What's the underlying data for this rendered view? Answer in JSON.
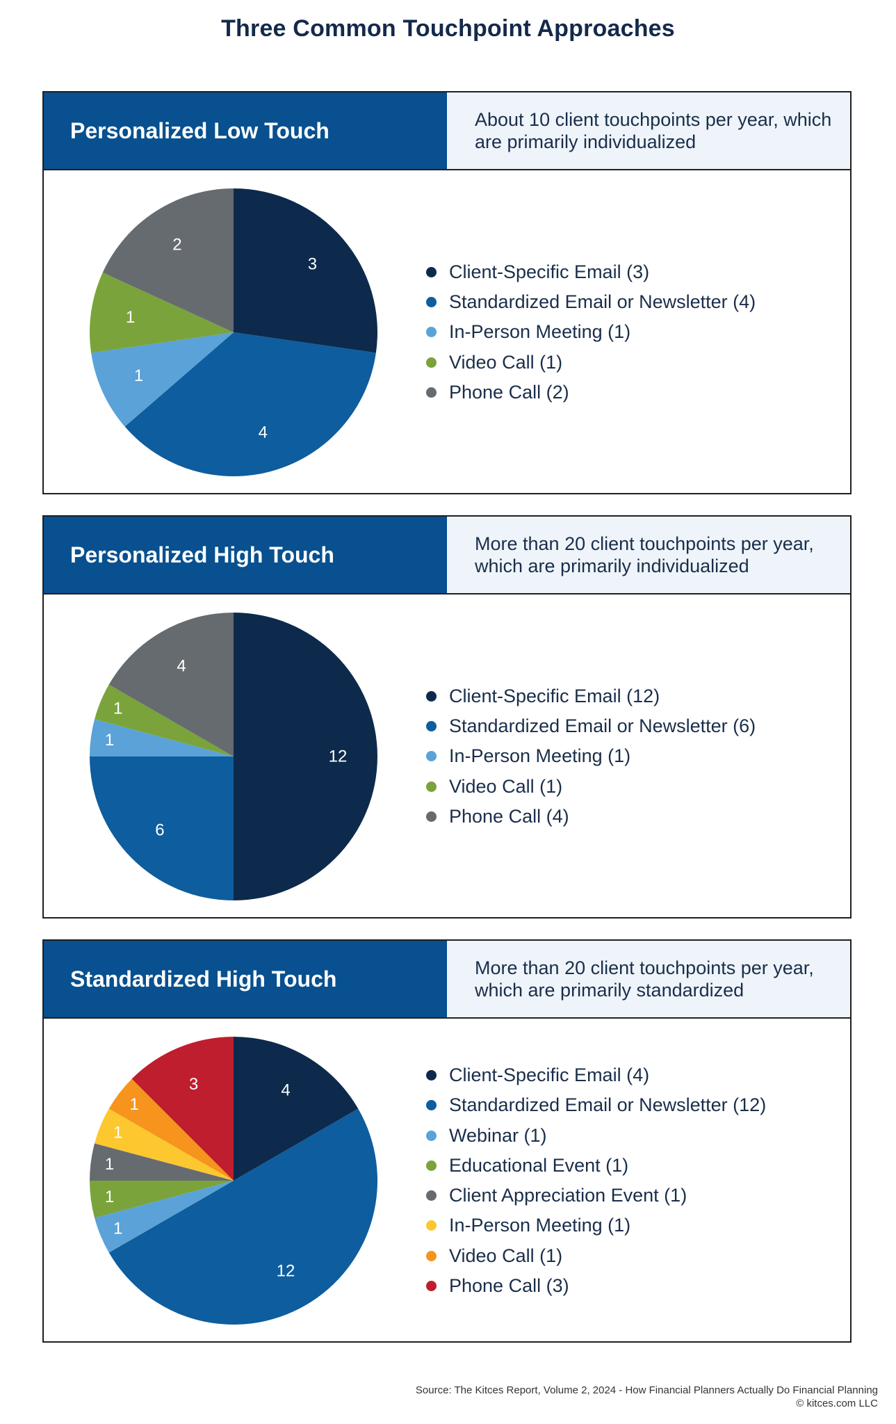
{
  "title": "Three Common Touchpoint Approaches",
  "colors": {
    "header_bg": "#08508f",
    "desc_bg": "#eef4fa",
    "client_specific_email": "#0d2a4c",
    "standardized_email": "#0e5d9e",
    "light_blue": "#5aa2d8",
    "green": "#7aa33c",
    "gray": "#666b70",
    "yellow": "#fdc72f",
    "orange": "#f7941d",
    "red": "#bf1e2e"
  },
  "chart_data": [
    {
      "type": "pie",
      "title": "Personalized Low Touch",
      "subtitle": "About 10 client touchpoints per year, which are primarily individualized",
      "legend_position": "right",
      "slices": [
        {
          "label": "Client-Specific Email (3)",
          "value": 3,
          "text": "3",
          "color": "#0d2a4c"
        },
        {
          "label": "Standardized Email or Newsletter (4)",
          "value": 4,
          "text": "4",
          "color": "#0e5d9e"
        },
        {
          "label": "In-Person Meeting (1)",
          "value": 1,
          "text": "1",
          "color": "#5aa2d8"
        },
        {
          "label": "Video Call (1)",
          "value": 1,
          "text": "1",
          "color": "#7aa33c"
        },
        {
          "label": "Phone Call (2)",
          "value": 2,
          "text": "2",
          "color": "#666b70"
        }
      ]
    },
    {
      "type": "pie",
      "title": "Personalized High Touch",
      "subtitle": "More than 20 client touchpoints per year, which are primarily individualized",
      "legend_position": "right",
      "slices": [
        {
          "label": "Client-Specific Email (12)",
          "value": 12,
          "text": "12",
          "color": "#0d2a4c"
        },
        {
          "label": "Standardized Email or Newsletter (6)",
          "value": 6,
          "text": "6",
          "color": "#0e5d9e"
        },
        {
          "label": "In-Person Meeting (1)",
          "value": 1,
          "text": "1",
          "color": "#5aa2d8"
        },
        {
          "label": "Video Call (1)",
          "value": 1,
          "text": "1",
          "color": "#7aa33c"
        },
        {
          "label": "Phone Call (4)",
          "value": 4,
          "text": "4",
          "color": "#666b70"
        }
      ]
    },
    {
      "type": "pie",
      "title": "Standardized High Touch",
      "subtitle": "More than 20 client touchpoints per year, which are primarily standardized",
      "legend_position": "right",
      "slices": [
        {
          "label": "Client-Specific Email (4)",
          "value": 4,
          "text": "4",
          "color": "#0d2a4c"
        },
        {
          "label": "Standardized Email or Newsletter (12)",
          "value": 12,
          "text": "12",
          "color": "#0e5d9e"
        },
        {
          "label": "Webinar (1)",
          "value": 1,
          "text": "1",
          "color": "#5aa2d8"
        },
        {
          "label": "Educational Event (1)",
          "value": 1,
          "text": "1",
          "color": "#7aa33c"
        },
        {
          "label": "Client Appreciation Event (1)",
          "value": 1,
          "text": "1",
          "color": "#666b70"
        },
        {
          "label": "In-Person Meeting (1)",
          "value": 1,
          "text": "1",
          "color": "#fdc72f"
        },
        {
          "label": "Video Call (1)",
          "value": 1,
          "text": "1",
          "color": "#f7941d"
        },
        {
          "label": "Phone Call (3)",
          "value": 3,
          "text": "3",
          "color": "#bf1e2e"
        }
      ]
    }
  ],
  "source": {
    "line1": "Source: The Kitces Report, Volume 2, 2024 - How Financial Planners Actually Do Financial Planning",
    "line2": "© kitces.com LLC"
  }
}
